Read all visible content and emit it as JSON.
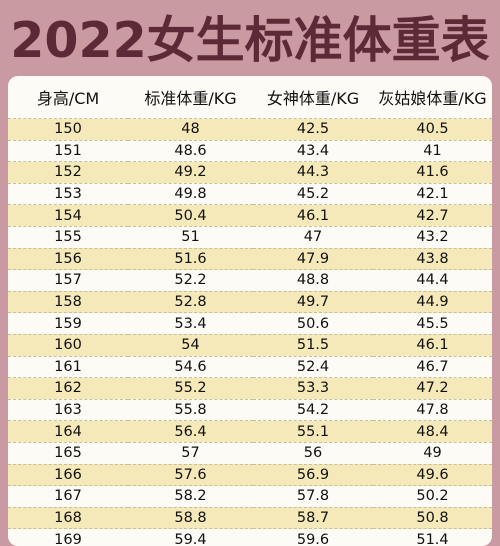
{
  "title": "2022女生标准体重表",
  "table": {
    "headers": [
      "身高/CM",
      "标准体重/KG",
      "女神体重/KG",
      "灰姑娘体重/KG"
    ],
    "rows": [
      [
        "150",
        "48",
        "42.5",
        "40.5"
      ],
      [
        "151",
        "48.6",
        "43.4",
        "41"
      ],
      [
        "152",
        "49.2",
        "44.3",
        "41.6"
      ],
      [
        "153",
        "49.8",
        "45.2",
        "42.1"
      ],
      [
        "154",
        "50.4",
        "46.1",
        "42.7"
      ],
      [
        "155",
        "51",
        "47",
        "43.2"
      ],
      [
        "156",
        "51.6",
        "47.9",
        "43.8"
      ],
      [
        "157",
        "52.2",
        "48.8",
        "44.4"
      ],
      [
        "158",
        "52.8",
        "49.7",
        "44.9"
      ],
      [
        "159",
        "53.4",
        "50.6",
        "45.5"
      ],
      [
        "160",
        "54",
        "51.5",
        "46.1"
      ],
      [
        "161",
        "54.6",
        "52.4",
        "46.7"
      ],
      [
        "162",
        "55.2",
        "53.3",
        "47.2"
      ],
      [
        "163",
        "55.8",
        "54.2",
        "47.8"
      ],
      [
        "164",
        "56.4",
        "55.1",
        "48.4"
      ],
      [
        "165",
        "57",
        "56",
        "49"
      ],
      [
        "166",
        "57.6",
        "56.9",
        "49.6"
      ],
      [
        "167",
        "58.2",
        "57.8",
        "50.2"
      ],
      [
        "168",
        "58.8",
        "58.7",
        "50.8"
      ],
      [
        "169",
        "59.4",
        "59.6",
        "51.4"
      ]
    ]
  }
}
